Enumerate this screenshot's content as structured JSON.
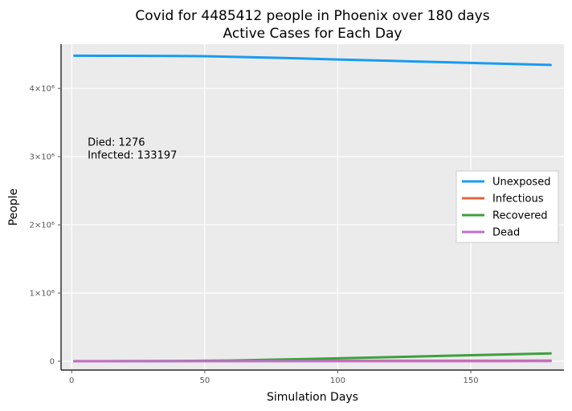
{
  "chart_data": {
    "type": "line",
    "title": "Covid for 4485412 people in Phoenix over 180 days",
    "subtitle": "Active Cases for Each Day",
    "xlabel": "Simulation Days",
    "ylabel": "People",
    "xlim": [
      -4,
      185
    ],
    "ylim": [
      -130000,
      4650000
    ],
    "grid": true,
    "legend_position": "right",
    "x_ticks": [
      {
        "value": 0,
        "label": "0"
      },
      {
        "value": 50,
        "label": "50"
      },
      {
        "value": 100,
        "label": "100"
      },
      {
        "value": 150,
        "label": "150"
      }
    ],
    "y_ticks": [
      {
        "value": 0,
        "label": "0"
      },
      {
        "value": 1000000,
        "label": "1×10⁶"
      },
      {
        "value": 2000000,
        "label": "2×10⁶"
      },
      {
        "value": 3000000,
        "label": "3×10⁶"
      },
      {
        "value": 4000000,
        "label": "4×10⁶"
      }
    ],
    "annotation": {
      "line1": "Died: 1276",
      "line2": "Infected: 133197",
      "x": 6,
      "y": 3160000
    },
    "series": [
      {
        "name": "Unexposed",
        "color": "#1a9bf0",
        "x": [
          1,
          20,
          40,
          50,
          60,
          80,
          100,
          120,
          140,
          160,
          180
        ],
        "values": [
          4480000,
          4479000,
          4477000,
          4473000,
          4465000,
          4447000,
          4425000,
          4405000,
          4385000,
          4365000,
          4345000
        ]
      },
      {
        "name": "Infectious",
        "color": "#e0663e",
        "x": [
          1,
          30,
          60,
          90,
          120,
          150,
          180
        ],
        "values": [
          200,
          1000,
          3000,
          5000,
          6000,
          7000,
          8000
        ]
      },
      {
        "name": "Recovered",
        "color": "#3f9f3f",
        "x": [
          1,
          20,
          40,
          60,
          80,
          100,
          120,
          140,
          160,
          180
        ],
        "values": [
          0,
          500,
          3000,
          10000,
          25000,
          42000,
          60000,
          78000,
          96000,
          115000
        ]
      },
      {
        "name": "Dead",
        "color": "#bf6fcc",
        "x": [
          1,
          60,
          120,
          180
        ],
        "values": [
          0,
          200,
          700,
          1276
        ]
      }
    ]
  }
}
